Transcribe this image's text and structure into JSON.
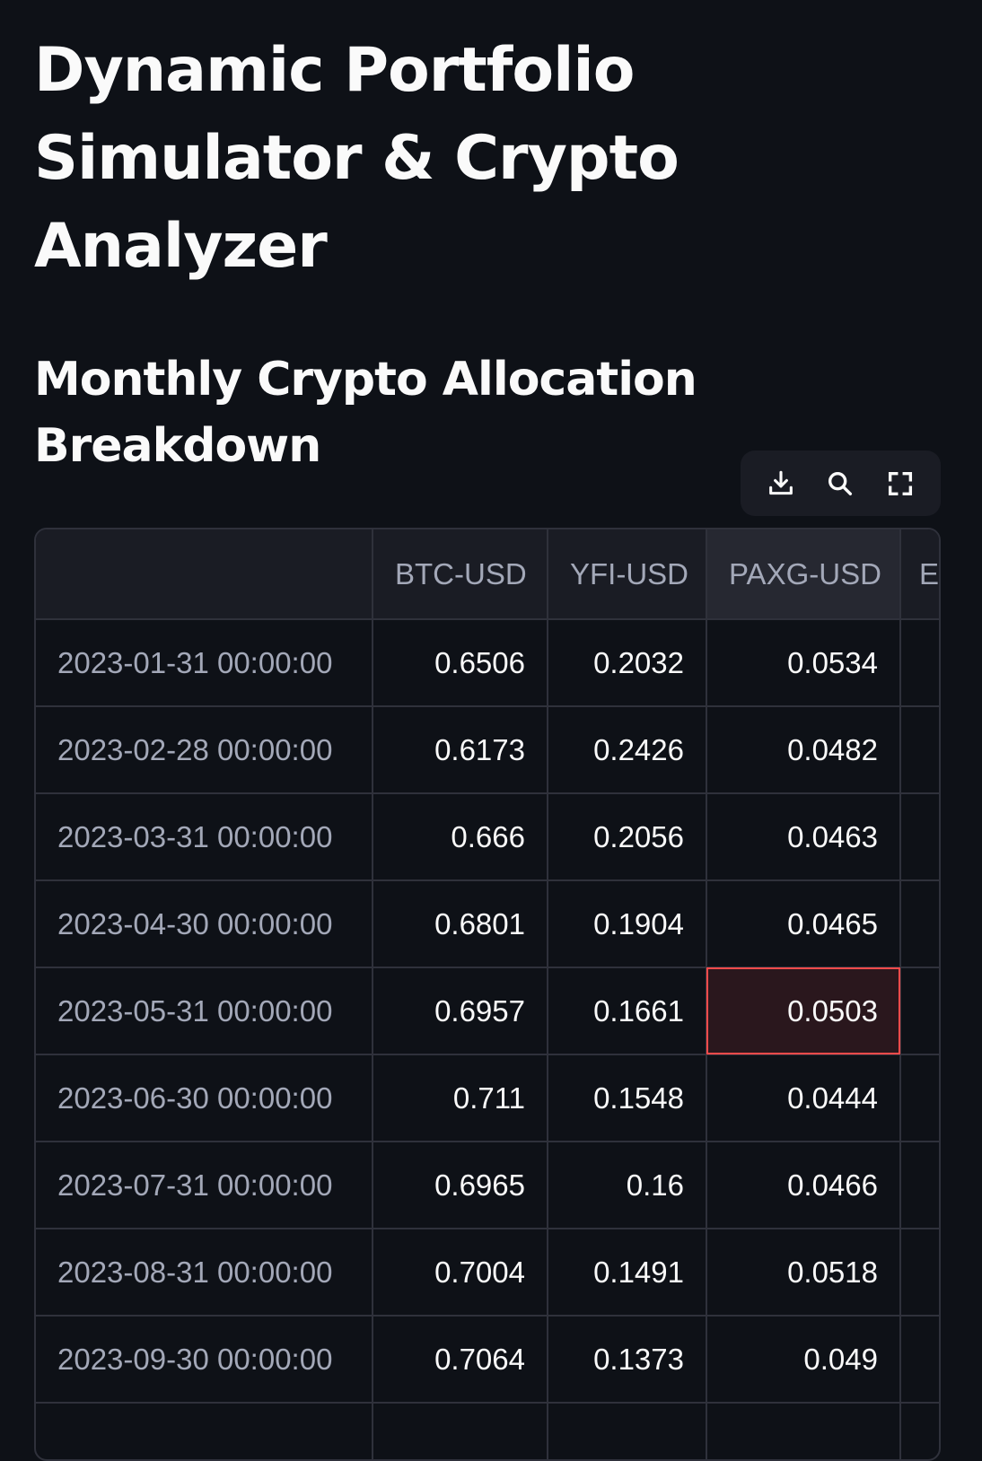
{
  "page": {
    "title": "Dynamic Portfolio Simulator & Crypto Analyzer",
    "section_title": "Monthly Crypto Allocation Breakdown"
  },
  "toolbar": {
    "icons": [
      "download-icon",
      "search-icon",
      "fullscreen-icon"
    ]
  },
  "table": {
    "columns": [
      "",
      "BTC-USD",
      "YFI-USD",
      "PAXG-USD",
      "E"
    ],
    "rows": [
      {
        "date": "2023-01-31 00:00:00",
        "btc": "0.6506",
        "yfi": "0.2032",
        "paxg": "0.0534"
      },
      {
        "date": "2023-02-28 00:00:00",
        "btc": "0.6173",
        "yfi": "0.2426",
        "paxg": "0.0482"
      },
      {
        "date": "2023-03-31 00:00:00",
        "btc": "0.666",
        "yfi": "0.2056",
        "paxg": "0.0463"
      },
      {
        "date": "2023-04-30 00:00:00",
        "btc": "0.6801",
        "yfi": "0.1904",
        "paxg": "0.0465"
      },
      {
        "date": "2023-05-31 00:00:00",
        "btc": "0.6957",
        "yfi": "0.1661",
        "paxg": "0.0503"
      },
      {
        "date": "2023-06-30 00:00:00",
        "btc": "0.711",
        "yfi": "0.1548",
        "paxg": "0.0444"
      },
      {
        "date": "2023-07-31 00:00:00",
        "btc": "0.6965",
        "yfi": "0.16",
        "paxg": "0.0466"
      },
      {
        "date": "2023-08-31 00:00:00",
        "btc": "0.7004",
        "yfi": "0.1491",
        "paxg": "0.0518"
      },
      {
        "date": "2023-09-30 00:00:00",
        "btc": "0.7064",
        "yfi": "0.1373",
        "paxg": "0.049"
      },
      {
        "date": "",
        "btc": "",
        "yfi": "",
        "paxg": ""
      }
    ]
  },
  "colors": {
    "background": "#0e1117",
    "header_bg": "#1a1c24",
    "grid_line": "#2f313b",
    "selection_border": "#ff4b4b",
    "index_text": "#a3a8b8"
  }
}
